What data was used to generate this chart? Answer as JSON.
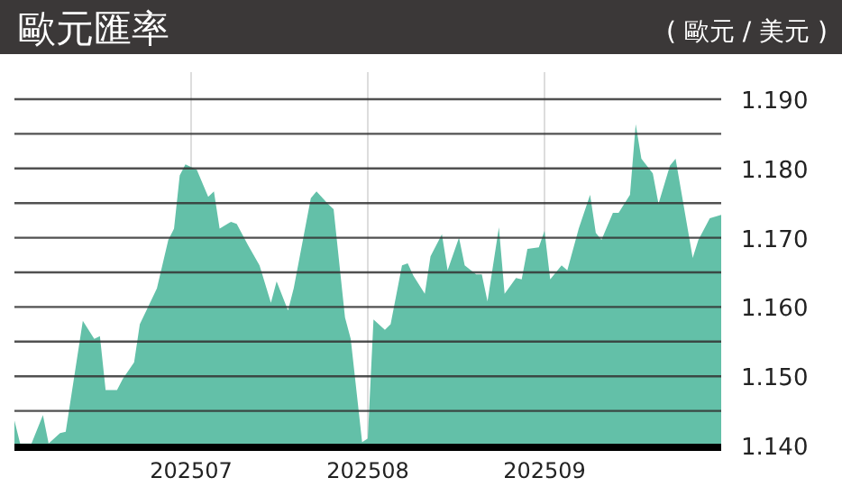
{
  "chart_data": {
    "type": "area",
    "title": "歐元匯率",
    "subtitle": "( 歐元 / 美元 )",
    "color": "#63c0a8",
    "grid": true,
    "x": [
      "2025-05-31",
      "2025-06-01",
      "2025-06-03",
      "2025-06-05",
      "2025-06-06",
      "2025-06-08",
      "2025-06-09",
      "2025-06-12",
      "2025-06-14",
      "2025-06-15",
      "2025-06-16",
      "2025-06-18",
      "2025-06-19",
      "2025-06-21",
      "2025-06-22",
      "2025-06-25",
      "2025-06-27",
      "2025-06-28",
      "2025-06-29",
      "2025-06-30",
      "2025-07-02",
      "2025-07-04",
      "2025-07-05",
      "2025-07-06",
      "2025-07-08",
      "2025-07-09",
      "2025-07-11",
      "2025-07-13",
      "2025-07-15",
      "2025-07-16",
      "2025-07-18",
      "2025-07-19",
      "2025-07-22",
      "2025-07-23",
      "2025-07-25",
      "2025-07-26",
      "2025-07-28",
      "2025-07-29",
      "2025-07-31",
      "2025-08-01",
      "2025-08-02",
      "2025-08-04",
      "2025-08-05",
      "2025-08-07",
      "2025-08-08",
      "2025-08-09",
      "2025-08-11",
      "2025-08-12",
      "2025-08-14",
      "2025-08-15",
      "2025-08-17",
      "2025-08-18",
      "2025-08-20",
      "2025-08-21",
      "2025-08-22",
      "2025-08-24",
      "2025-08-25",
      "2025-08-27",
      "2025-08-28",
      "2025-08-29",
      "2025-08-31",
      "2025-09-01",
      "2025-09-02",
      "2025-09-04",
      "2025-09-05",
      "2025-09-07",
      "2025-09-09",
      "2025-09-10",
      "2025-09-11",
      "2025-09-13",
      "2025-09-14",
      "2025-09-16",
      "2025-09-17",
      "2025-09-18",
      "2025-09-20",
      "2025-09-21",
      "2025-09-23",
      "2025-09-24",
      "2025-09-27",
      "2025-09-28",
      "2025-09-30",
      "2025-10-02"
    ],
    "values": [
      1.1436,
      1.1403,
      1.1403,
      1.1444,
      1.1403,
      1.1418,
      1.142,
      1.158,
      1.1554,
      1.1558,
      1.148,
      1.148,
      1.1496,
      1.152,
      1.1575,
      1.1627,
      1.1697,
      1.1713,
      1.179,
      1.1806,
      1.1798,
      1.1759,
      1.1767,
      1.1713,
      1.1723,
      1.172,
      1.1689,
      1.166,
      1.1606,
      1.1637,
      1.1595,
      1.1627,
      1.1757,
      1.1767,
      1.1749,
      1.1741,
      1.1585,
      1.1554,
      1.1405,
      1.141,
      1.1582,
      1.1567,
      1.1575,
      1.166,
      1.1663,
      1.1645,
      1.1619,
      1.1673,
      1.1705,
      1.1653,
      1.17,
      1.166,
      1.1647,
      1.1647,
      1.1608,
      1.1715,
      1.1619,
      1.1642,
      1.164,
      1.1684,
      1.1686,
      1.171,
      1.164,
      1.166,
      1.1653,
      1.1713,
      1.1762,
      1.1707,
      1.1697,
      1.1736,
      1.1736,
      1.1762,
      1.1864,
      1.1814,
      1.1793,
      1.1749,
      1.1804,
      1.1814,
      1.1671,
      1.1697,
      1.1728,
      1.1733
    ],
    "xlim": [
      "2025-05-31",
      "2025-10-02"
    ],
    "xticks": [
      {
        "value": "2025-07-01",
        "label": "202507"
      },
      {
        "value": "2025-08-01",
        "label": "202508"
      },
      {
        "value": "2025-09-01",
        "label": "202509"
      }
    ],
    "ylim": [
      1.14,
      1.19
    ],
    "yticks": [
      {
        "value": 1.14,
        "label": "1.140"
      },
      {
        "value": 1.145,
        "label": null
      },
      {
        "value": 1.15,
        "label": "1.150"
      },
      {
        "value": 1.155,
        "label": null
      },
      {
        "value": 1.16,
        "label": "1.160"
      },
      {
        "value": 1.165,
        "label": null
      },
      {
        "value": 1.17,
        "label": "1.170"
      },
      {
        "value": 1.175,
        "label": null
      },
      {
        "value": 1.18,
        "label": "1.180"
      },
      {
        "value": 1.185,
        "label": null
      },
      {
        "value": 1.19,
        "label": "1.190"
      }
    ]
  }
}
